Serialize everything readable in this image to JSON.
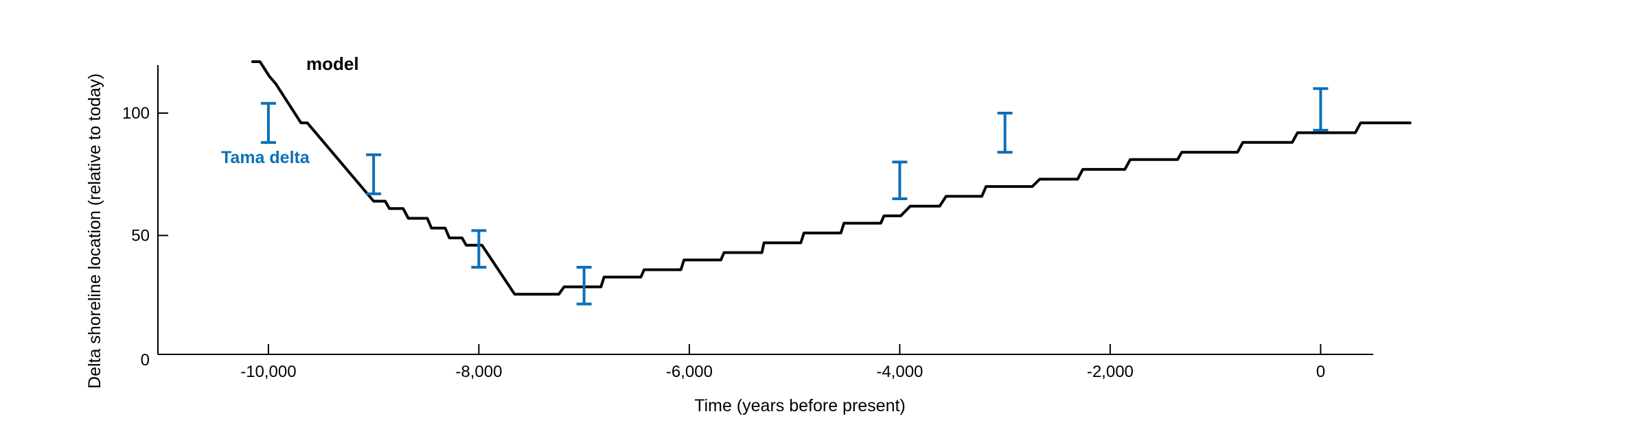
{
  "chart_data": {
    "type": "line",
    "title": "",
    "xlabel": "Time (years before present)",
    "ylabel": "Delta shoreline location (relative to today)",
    "xlim": [
      -11050,
      500
    ],
    "ylim": [
      0,
      120
    ],
    "x_ticks": [
      -10000,
      -8000,
      -6000,
      -4000,
      -2000,
      0
    ],
    "x_tick_labels": [
      "-10,000",
      "-8,000",
      "-6,000",
      "-4,000",
      "-2,000",
      "0"
    ],
    "y_ticks": [
      0,
      50,
      100
    ],
    "y_tick_labels": [
      "0",
      "50",
      "100"
    ],
    "grid": false,
    "legend": "none (series labelled directly on the plot)",
    "colors": {
      "model": "#000000",
      "tama_delta": "#0d6fb8",
      "axis": "#000000"
    },
    "series": [
      {
        "name": "model",
        "kind": "line",
        "x": [
          -10150,
          -10080,
          -9990,
          -9930,
          -9690,
          -9630,
          -9000,
          -8890,
          -8850,
          -8720,
          -8670,
          -8490,
          -8450,
          -8320,
          -8280,
          -8160,
          -8120,
          -7970,
          -7660,
          -7240,
          -7190,
          -6840,
          -6810,
          -6460,
          -6430,
          -6080,
          -6050,
          -5700,
          -5670,
          -5310,
          -5290,
          -4940,
          -4910,
          -4560,
          -4530,
          -4180,
          -4150,
          -3990,
          -3900,
          -3620,
          -3560,
          -3220,
          -3180,
          -2740,
          -2670,
          -2310,
          -2260,
          -1860,
          -1810,
          -1360,
          -1320,
          -790,
          -740,
          -270,
          -220,
          330,
          380,
          850
        ],
        "y": [
          121,
          121,
          115,
          112,
          96,
          96,
          64,
          64,
          61,
          61,
          57,
          57,
          53,
          53,
          49,
          49,
          46,
          46,
          26,
          26,
          29,
          29,
          33,
          33,
          36,
          36,
          40,
          40,
          43,
          43,
          47,
          47,
          51,
          51,
          55,
          55,
          58,
          58,
          62,
          62,
          66,
          66,
          70,
          70,
          73,
          73,
          77,
          77,
          81,
          81,
          84,
          84,
          88,
          88,
          92,
          92,
          96,
          96
        ]
      },
      {
        "name": "Tama delta",
        "kind": "error_bar",
        "x": [
          -10000,
          -9000,
          -8000,
          -7000,
          -4000,
          -3000,
          0
        ],
        "low": [
          88,
          67,
          37,
          22,
          65,
          84,
          93
        ],
        "high": [
          104,
          83,
          52,
          37,
          80,
          100,
          110
        ]
      }
    ],
    "annotations": [
      {
        "text": "model",
        "color": "#000000",
        "weight": "bold"
      },
      {
        "text": "Tama delta",
        "color": "#0d6fb8",
        "weight": "bold"
      }
    ]
  }
}
